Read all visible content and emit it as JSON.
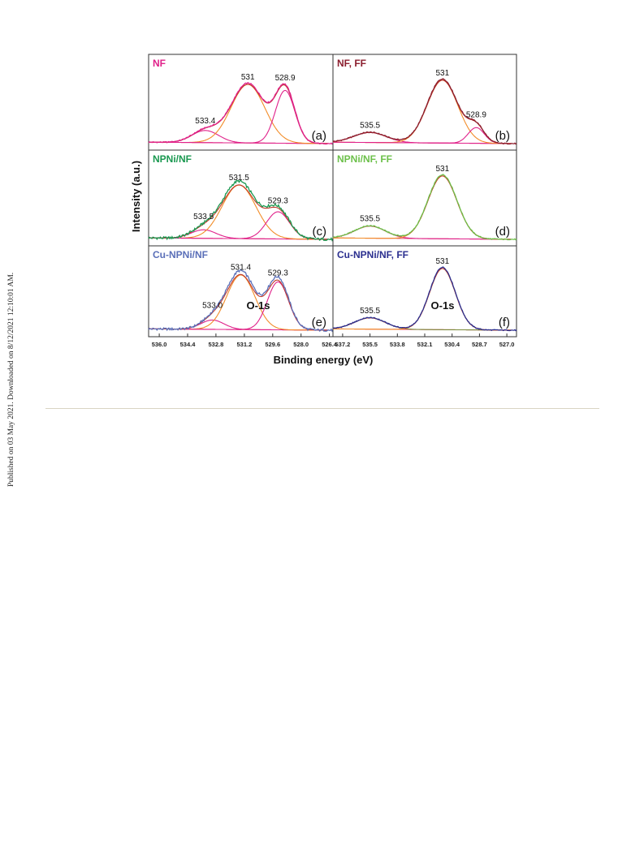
{
  "side_note": "Published on 03 May 2021. Downloaded on 8/12/2021 12:10:01 AM.",
  "figure": {
    "ylabel": "Intensity (a.u.)",
    "xlabel": "Binding energy (eV)",
    "core_level_label": "O-1s"
  },
  "colors": {
    "raw_nf": "#e0218a",
    "raw_nf_ff": "#8b1e2e",
    "raw_npni": "#1a9850",
    "raw_npni_ff": "#6cc04a",
    "raw_cu": "#5a6fb8",
    "raw_cu_ff": "#2b2f8f",
    "fit_envelope": "#c0392b",
    "peak_main": "#f28c28",
    "peak_other": "#e0218a",
    "baseline": "#e04060",
    "peak_other_f": "#7a8a3a"
  },
  "chart_data": [
    {
      "panel": "(a)",
      "type": "line",
      "title": "NF",
      "xlim": [
        536.6,
        526.2
      ],
      "xticks": [
        "536.0",
        "534.4",
        "532.8",
        "531.2",
        "529.6",
        "528.0",
        "526.4"
      ],
      "xtick_values": [
        536.0,
        534.4,
        532.8,
        531.2,
        529.6,
        528.0,
        526.4
      ],
      "peaks": [
        {
          "center": 533.4,
          "label": "533.4",
          "amp": 0.17,
          "width": 0.75,
          "role": "other"
        },
        {
          "center": 531.0,
          "label": "531",
          "amp": 0.82,
          "width": 0.95,
          "role": "main"
        },
        {
          "center": 528.9,
          "label": "528.9",
          "amp": 0.74,
          "width": 0.55,
          "role": "other"
        }
      ]
    },
    {
      "panel": "(b)",
      "type": "line",
      "title": "NF, FF",
      "xlim": [
        537.8,
        526.4
      ],
      "xticks": [
        "537.2",
        "535.5",
        "533.8",
        "532.1",
        "530.4",
        "528.7",
        "527.0"
      ],
      "xtick_values": [
        537.2,
        535.5,
        533.8,
        532.1,
        530.4,
        528.7,
        527.0
      ],
      "peaks": [
        {
          "center": 535.5,
          "label": "535.5",
          "amp": 0.14,
          "width": 1.0,
          "role": "other"
        },
        {
          "center": 531.0,
          "label": "531",
          "amp": 0.88,
          "width": 0.95,
          "role": "main"
        },
        {
          "center": 528.9,
          "label": "528.9",
          "amp": 0.22,
          "width": 0.5,
          "role": "other"
        }
      ]
    },
    {
      "panel": "(c)",
      "type": "line",
      "title": "NPNi/NF",
      "xlim": [
        536.6,
        526.2
      ],
      "xticks": [
        "536.0",
        "534.4",
        "532.8",
        "531.2",
        "529.6",
        "528.0",
        "526.4"
      ],
      "xtick_values": [
        536.0,
        534.4,
        532.8,
        531.2,
        529.6,
        528.0,
        526.4
      ],
      "peaks": [
        {
          "center": 533.5,
          "label": "533.5",
          "amp": 0.12,
          "width": 0.7,
          "role": "other"
        },
        {
          "center": 531.5,
          "label": "531.5",
          "amp": 0.75,
          "width": 0.95,
          "role": "main"
        },
        {
          "center": 529.3,
          "label": "529.3",
          "amp": 0.38,
          "width": 0.65,
          "role": "other"
        }
      ]
    },
    {
      "panel": "(d)",
      "type": "line",
      "title": "NPNi/NF, FF",
      "xlim": [
        537.8,
        526.4
      ],
      "xticks": [
        "537.2",
        "535.5",
        "533.8",
        "532.1",
        "530.4",
        "528.7",
        "527.0"
      ],
      "xtick_values": [
        537.2,
        535.5,
        533.8,
        532.1,
        530.4,
        528.7,
        527.0
      ],
      "peaks": [
        {
          "center": 535.5,
          "label": "535.5",
          "amp": 0.17,
          "width": 0.95,
          "role": "other"
        },
        {
          "center": 531.0,
          "label": "531",
          "amp": 0.88,
          "width": 0.9,
          "role": "main"
        }
      ]
    },
    {
      "panel": "(e)",
      "type": "line",
      "title": "Cu-NPNi/NF",
      "xlim": [
        536.6,
        526.2
      ],
      "xticks": [
        "536.0",
        "534.4",
        "532.8",
        "531.2",
        "529.6",
        "528.0",
        "526.4"
      ],
      "xtick_values": [
        536.0,
        534.4,
        532.8,
        531.2,
        529.6,
        528.0,
        526.4
      ],
      "peaks": [
        {
          "center": 533.0,
          "label": "533.0",
          "amp": 0.14,
          "width": 0.65,
          "role": "other"
        },
        {
          "center": 531.4,
          "label": "531.4",
          "amp": 0.82,
          "width": 0.8,
          "role": "main"
        },
        {
          "center": 529.3,
          "label": "529.3",
          "amp": 0.72,
          "width": 0.6,
          "role": "other"
        }
      ]
    },
    {
      "panel": "(f)",
      "type": "line",
      "title": "Cu-NPNi/NF, FF",
      "xlim": [
        537.8,
        526.4
      ],
      "xticks": [
        "537.2",
        "535.5",
        "533.8",
        "532.1",
        "530.4",
        "528.7",
        "527.0"
      ],
      "xtick_values": [
        537.2,
        535.5,
        533.8,
        532.1,
        530.4,
        528.7,
        527.0
      ],
      "peaks": [
        {
          "center": 535.5,
          "label": "535.5",
          "amp": 0.17,
          "width": 0.95,
          "role": "other"
        },
        {
          "center": 531.0,
          "label": "531",
          "amp": 0.92,
          "width": 0.8,
          "role": "main"
        }
      ]
    }
  ]
}
